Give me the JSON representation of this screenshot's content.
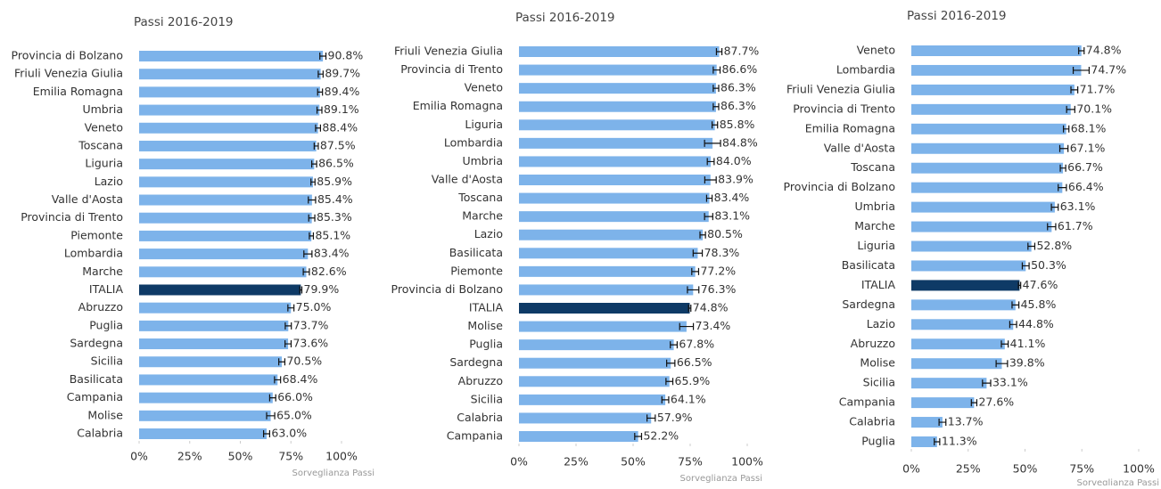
{
  "chart_data": [
    {
      "type": "barh",
      "title": "Passi 2016-2019",
      "source": "Sorveglianza Passi",
      "categories": [
        "Provincia di Bolzano",
        "Friuli Venezia Giulia",
        "Emilia Romagna",
        "Umbria",
        "Veneto",
        "Toscana",
        "Liguria",
        "Lazio",
        "Valle d'Aosta",
        "Provincia di Trento",
        "Piemonte",
        "Lombardia",
        "Marche",
        "ITALIA",
        "Abruzzo",
        "Puglia",
        "Sardegna",
        "Sicilia",
        "Basilicata",
        "Campania",
        "Molise",
        "Calabria"
      ],
      "values": [
        90.8,
        89.7,
        89.4,
        89.1,
        88.4,
        87.5,
        86.5,
        85.9,
        85.4,
        85.3,
        85.1,
        83.4,
        82.6,
        79.9,
        75.0,
        73.7,
        73.6,
        70.5,
        68.4,
        66.0,
        65.0,
        63.0
      ],
      "value_labels": [
        "90.8%",
        "89.7%",
        "89.4%",
        "89.1%",
        "88.4%",
        "87.5%",
        "86.5%",
        "85.9%",
        "85.4%",
        "85.3%",
        "85.1%",
        "83.4%",
        "82.6%",
        "79.9%",
        "75.0%",
        "73.7%",
        "73.6%",
        "70.5%",
        "68.4%",
        "66.0%",
        "65.0%",
        "63.0%"
      ],
      "errors": [
        1.5,
        1.2,
        1.2,
        1.2,
        1.2,
        1.0,
        1.2,
        1.0,
        1.8,
        1.5,
        1.0,
        2.0,
        1.5,
        0.5,
        1.5,
        1.5,
        1.5,
        1.5,
        1.5,
        1.5,
        2.0,
        1.5
      ],
      "colors": [
        "#7db3ea",
        "#7db3ea",
        "#7db3ea",
        "#7db3ea",
        "#7db3ea",
        "#7db3ea",
        "#7db3ea",
        "#7db3ea",
        "#7db3ea",
        "#7db3ea",
        "#7db3ea",
        "#7db3ea",
        "#7db3ea",
        "#0e3a66",
        "#7db3ea",
        "#7db3ea",
        "#7db3ea",
        "#7db3ea",
        "#7db3ea",
        "#7db3ea",
        "#7db3ea",
        "#7db3ea"
      ],
      "xlim": [
        0,
        100
      ],
      "xticks": [
        {
          "value": 0,
          "label": "0%"
        },
        {
          "value": 25,
          "label": "25%"
        },
        {
          "value": 50,
          "label": "50%"
        },
        {
          "value": 75,
          "label": "75%"
        },
        {
          "value": 100,
          "label": "100%"
        }
      ]
    },
    {
      "type": "barh",
      "title": "Passi 2016-2019",
      "source": "Sorveglianza Passi",
      "categories": [
        "Friuli Venezia Giulia",
        "Provincia di Trento",
        "Veneto",
        "Emilia Romagna",
        "Liguria",
        "Lombardia",
        "Umbria",
        "Valle d'Aosta",
        "Toscana",
        "Marche",
        "Lazio",
        "Basilicata",
        "Piemonte",
        "Provincia di Bolzano",
        "ITALIA",
        "Molise",
        "Puglia",
        "Sardegna",
        "Abruzzo",
        "Sicilia",
        "Calabria",
        "Campania"
      ],
      "values": [
        87.7,
        86.6,
        86.3,
        86.3,
        85.8,
        84.8,
        84.0,
        83.9,
        83.4,
        83.1,
        80.5,
        78.3,
        77.2,
        76.3,
        74.8,
        73.4,
        67.8,
        66.5,
        65.9,
        64.1,
        57.9,
        52.2
      ],
      "value_labels": [
        "87.7%",
        "86.6%",
        "86.3%",
        "86.3%",
        "85.8%",
        "84.8%",
        "84.0%",
        "83.9%",
        "83.4%",
        "83.1%",
        "80.5%",
        "78.3%",
        "77.2%",
        "76.3%",
        "74.8%",
        "73.4%",
        "67.8%",
        "66.5%",
        "65.9%",
        "64.1%",
        "57.9%",
        "52.2%"
      ],
      "errors": [
        1.2,
        1.5,
        1.2,
        1.2,
        1.2,
        3.5,
        1.5,
        2.5,
        1.2,
        1.8,
        1.2,
        2.0,
        1.5,
        2.5,
        0.5,
        3.0,
        1.5,
        1.8,
        1.5,
        1.5,
        1.8,
        1.5
      ],
      "colors": [
        "#7db3ea",
        "#7db3ea",
        "#7db3ea",
        "#7db3ea",
        "#7db3ea",
        "#7db3ea",
        "#7db3ea",
        "#7db3ea",
        "#7db3ea",
        "#7db3ea",
        "#7db3ea",
        "#7db3ea",
        "#7db3ea",
        "#7db3ea",
        "#0e3a66",
        "#7db3ea",
        "#7db3ea",
        "#7db3ea",
        "#7db3ea",
        "#7db3ea",
        "#7db3ea",
        "#7db3ea"
      ],
      "xlim": [
        0,
        100
      ],
      "xticks": [
        {
          "value": 0,
          "label": "0%"
        },
        {
          "value": 25,
          "label": "25%"
        },
        {
          "value": 50,
          "label": "50%"
        },
        {
          "value": 75,
          "label": "75%"
        },
        {
          "value": 100,
          "label": "100%"
        }
      ]
    },
    {
      "type": "barh",
      "title": "Passi 2016-2019",
      "source": "Sorveglianza Passi",
      "categories": [
        "Veneto",
        "Lombardia",
        "Friuli Venezia Giulia",
        "Provincia di Trento",
        "Emilia Romagna",
        "Valle d'Aosta",
        "Toscana",
        "Provincia di Bolzano",
        "Umbria",
        "Marche",
        "Liguria",
        "Basilicata",
        "ITALIA",
        "Sardegna",
        "Lazio",
        "Abruzzo",
        "Molise",
        "Sicilia",
        "Campania",
        "Calabria",
        "Puglia"
      ],
      "values": [
        74.8,
        74.7,
        71.7,
        70.1,
        68.1,
        67.1,
        66.7,
        66.4,
        63.1,
        61.7,
        52.8,
        50.3,
        47.6,
        45.8,
        44.8,
        41.1,
        39.8,
        33.1,
        27.6,
        13.7,
        11.3
      ],
      "value_labels": [
        "74.8%",
        "74.7%",
        "71.7%",
        "70.1%",
        "68.1%",
        "67.1%",
        "66.7%",
        "66.4%",
        "63.1%",
        "61.7%",
        "52.8%",
        "50.3%",
        "47.6%",
        "45.8%",
        "44.8%",
        "41.1%",
        "39.8%",
        "33.1%",
        "27.6%",
        "13.7%",
        "11.3%"
      ],
      "errors": [
        1.2,
        3.5,
        1.5,
        1.8,
        1.2,
        1.8,
        1.2,
        1.8,
        1.5,
        1.8,
        1.5,
        1.5,
        0.5,
        1.5,
        1.5,
        1.5,
        2.5,
        1.8,
        1.2,
        1.5,
        1.2
      ],
      "colors": [
        "#7db3ea",
        "#7db3ea",
        "#7db3ea",
        "#7db3ea",
        "#7db3ea",
        "#7db3ea",
        "#7db3ea",
        "#7db3ea",
        "#7db3ea",
        "#7db3ea",
        "#7db3ea",
        "#7db3ea",
        "#0e3a66",
        "#7db3ea",
        "#7db3ea",
        "#7db3ea",
        "#7db3ea",
        "#7db3ea",
        "#7db3ea",
        "#7db3ea",
        "#7db3ea"
      ],
      "xlim": [
        0,
        100
      ],
      "xticks": [
        {
          "value": 0,
          "label": "0%"
        },
        {
          "value": 25,
          "label": "25%"
        },
        {
          "value": 50,
          "label": "50%"
        },
        {
          "value": 75,
          "label": "75%"
        },
        {
          "value": 100,
          "label": "100%"
        }
      ]
    }
  ]
}
